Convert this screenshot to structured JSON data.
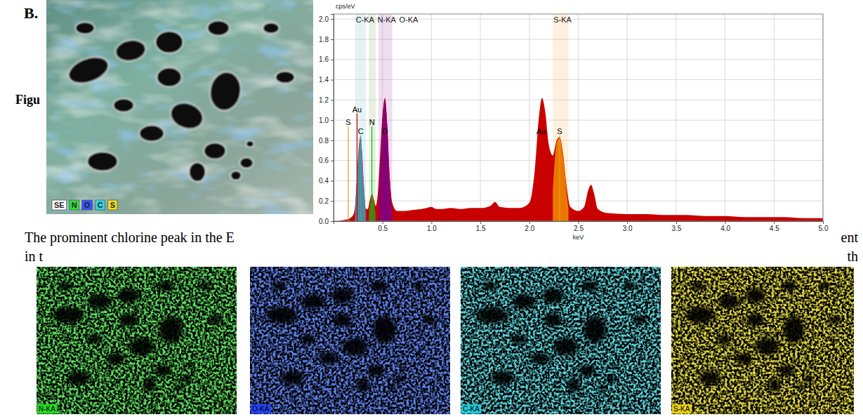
{
  "figure_label": "B.",
  "caption_fragment": "Figu",
  "sem_image": {
    "legend": [
      {
        "label": "SE",
        "color": "#ffffff"
      },
      {
        "label": "N",
        "color": "#33e033"
      },
      {
        "label": "O",
        "color": "#3355ff"
      },
      {
        "label": "C",
        "color": "#33d6e0"
      },
      {
        "label": "S",
        "color": "#f0e020"
      }
    ]
  },
  "chart_data": {
    "type": "area",
    "x_label": "keV",
    "y_label": "cps/eV",
    "xlim": [
      0,
      5
    ],
    "ylim": [
      0,
      2.05
    ],
    "xticks": [
      0.5,
      {
        "value": 1,
        "label": "1.0"
      },
      1.5,
      {
        "value": 2,
        "label": "2.0"
      },
      2.5,
      {
        "value": 3,
        "label": "3.0"
      },
      3.5,
      {
        "value": 4,
        "label": "4.0"
      },
      4.5,
      {
        "value": 5,
        "label": "5.0"
      }
    ],
    "yticks": [
      {
        "value": 0,
        "label": "0.0"
      },
      0.2,
      0.4,
      0.6,
      0.8,
      {
        "value": 1,
        "label": "1.0"
      },
      1.2,
      1.4,
      1.6,
      1.8,
      {
        "value": 2,
        "label": "2.0"
      }
    ],
    "grid": true,
    "series": [
      {
        "color": "#c80000",
        "x": [
          0.05,
          0.1,
          0.15,
          0.2,
          0.22,
          0.24,
          0.26,
          0.277,
          0.29,
          0.31,
          0.33,
          0.35,
          0.37,
          0.392,
          0.41,
          0.43,
          0.45,
          0.47,
          0.5,
          0.525,
          0.55,
          0.57,
          0.6,
          0.65,
          0.7,
          0.8,
          0.9,
          0.95,
          1.0,
          1.05,
          1.1,
          1.2,
          1.3,
          1.4,
          1.5,
          1.6,
          1.65,
          1.7,
          1.8,
          1.9,
          2.0,
          2.05,
          2.1,
          2.13,
          2.16,
          2.2,
          2.24,
          2.28,
          2.31,
          2.34,
          2.38,
          2.42,
          2.5,
          2.56,
          2.6,
          2.63,
          2.66,
          2.7,
          2.8,
          3.0,
          3.2,
          3.4,
          3.6,
          3.8,
          4.0,
          4.2,
          4.4,
          4.6,
          4.8,
          5.0
        ],
        "values": [
          0,
          0.01,
          0.02,
          0.06,
          0.15,
          0.45,
          0.75,
          0.84,
          0.7,
          0.35,
          0.12,
          0.12,
          0.2,
          0.27,
          0.22,
          0.15,
          0.25,
          0.55,
          1.05,
          1.22,
          0.95,
          0.5,
          0.18,
          0.1,
          0.1,
          0.11,
          0.12,
          0.13,
          0.14,
          0.12,
          0.12,
          0.13,
          0.12,
          0.13,
          0.13,
          0.15,
          0.19,
          0.14,
          0.13,
          0.13,
          0.18,
          0.45,
          1.05,
          1.22,
          1.1,
          0.75,
          0.65,
          0.8,
          0.83,
          0.7,
          0.35,
          0.14,
          0.1,
          0.14,
          0.3,
          0.36,
          0.28,
          0.12,
          0.08,
          0.07,
          0.07,
          0.06,
          0.06,
          0.05,
          0.05,
          0.04,
          0.04,
          0.04,
          0.03,
          0.03
        ]
      },
      {
        "name": "C-KA",
        "color": "#3f9fb4",
        "x": [
          0.22,
          0.24,
          0.26,
          0.277,
          0.29,
          0.31,
          0.33
        ],
        "values": [
          0.12,
          0.42,
          0.72,
          0.83,
          0.68,
          0.33,
          0.08
        ]
      },
      {
        "name": "N-KA",
        "color": "#4a8a1a",
        "x": [
          0.36,
          0.38,
          0.392,
          0.41,
          0.43
        ],
        "values": [
          0.08,
          0.2,
          0.26,
          0.2,
          0.08
        ]
      },
      {
        "name": "O-KA",
        "color": "#800080",
        "x": [
          0.46,
          0.48,
          0.5,
          0.525,
          0.55,
          0.57,
          0.6
        ],
        "values": [
          0.2,
          0.6,
          1.02,
          1.2,
          0.92,
          0.48,
          0.12
        ]
      },
      {
        "name": "S-KA",
        "color": "#f08c00",
        "x": [
          2.24,
          2.26,
          2.28,
          2.31,
          2.34,
          2.36,
          2.38,
          2.4
        ],
        "values": [
          0.3,
          0.6,
          0.78,
          0.82,
          0.68,
          0.5,
          0.3,
          0.12
        ]
      }
    ],
    "annotations": [
      {
        "text": "S",
        "x": 0.15,
        "y": 0.95,
        "color": "#f0a000"
      },
      {
        "text": "Au",
        "x": 0.24,
        "y": 1.08,
        "color": "#c80000"
      },
      {
        "text": "C",
        "x": 0.277,
        "y": 0.86,
        "color": "#3f9fb4"
      },
      {
        "text": "N",
        "x": 0.392,
        "y": 0.95,
        "color": "#00c000"
      },
      {
        "text": "O",
        "x": 0.525,
        "y": 0.86,
        "color": "#6a00a0"
      },
      {
        "text": "Au",
        "x": 2.12,
        "y": 0.86,
        "color": "#c80000"
      },
      {
        "text": "S",
        "x": 2.31,
        "y": 0.86,
        "color": "#f0a000"
      }
    ]
  },
  "body_text": [
    {
      "left": "The prominent chlorine peak in the E",
      "right": "ent"
    },
    {
      "left": "in t",
      "right": "th"
    }
  ],
  "maps": [
    {
      "label": "N-KA",
      "color": "#22dd22"
    },
    {
      "label": "O-KA",
      "color": "#2244ff"
    },
    {
      "label": "C-KA",
      "color": "#22c8d8"
    },
    {
      "label": "S-KA",
      "color": "#e8d010"
    }
  ]
}
